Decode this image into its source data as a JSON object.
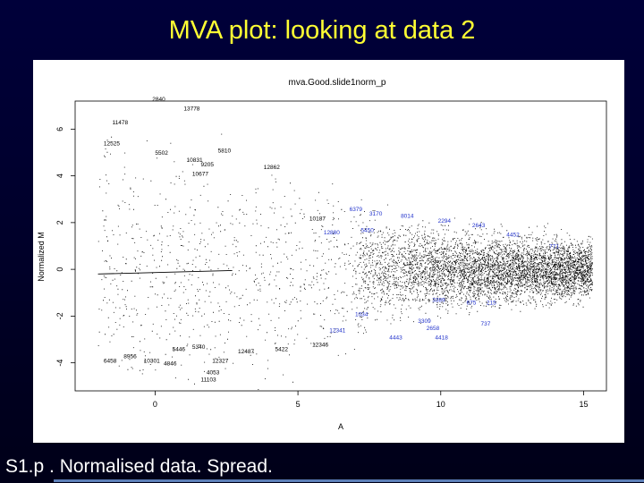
{
  "slide": {
    "title": "MVA plot: looking at data 2",
    "footer": "S1.p . Normalised data. Spread."
  },
  "colors": {
    "background": "#00003a",
    "title": "#ffff33",
    "points": "#000000",
    "highlighted_labels": "#2233cc"
  },
  "chart_data": {
    "type": "scatter",
    "title": "mva.Good.slide1norm_p",
    "xlabel": "A",
    "ylabel": "Normalized M",
    "xlim": [
      -2.8,
      15.8
    ],
    "ylim": [
      -5.2,
      7.2
    ],
    "xticks": [
      "0",
      "5",
      "10",
      "15"
    ],
    "yticks": [
      "-4",
      "-2",
      "0",
      "2",
      "4",
      "6"
    ],
    "xtick_values": [
      0,
      5,
      10,
      15
    ],
    "ytick_values": [
      -4,
      -2,
      0,
      2,
      4,
      6
    ],
    "grid": false,
    "point_density": "dense cloud of points near M = 0, densest for A between 7 and 15, spreading wider at low A",
    "label_color_blue_region": "labels for A above about 5.5 drawn in blue",
    "fit_line": {
      "x": [
        -2.0,
        2.7
      ],
      "y": [
        -0.2,
        -0.05
      ]
    },
    "labeled_points": [
      {
        "label": "2840",
        "x": -0.1,
        "y": 7.2
      },
      {
        "label": "13778",
        "x": 1.0,
        "y": 6.8
      },
      {
        "label": "11478",
        "x": -1.5,
        "y": 6.2
      },
      {
        "label": "12525",
        "x": -1.8,
        "y": 5.3
      },
      {
        "label": "5502",
        "x": 0.0,
        "y": 4.9
      },
      {
        "label": "5810",
        "x": 2.2,
        "y": 5.0
      },
      {
        "label": "10831",
        "x": 1.1,
        "y": 4.6
      },
      {
        "label": "9205",
        "x": 1.6,
        "y": 4.4
      },
      {
        "label": "12862",
        "x": 3.8,
        "y": 4.3
      },
      {
        "label": "10677",
        "x": 1.3,
        "y": 4.0
      },
      {
        "label": "6379",
        "x": 6.8,
        "y": 2.5
      },
      {
        "label": "3170",
        "x": 7.5,
        "y": 2.3
      },
      {
        "label": "10187",
        "x": 5.4,
        "y": 2.1
      },
      {
        "label": "8014",
        "x": 8.6,
        "y": 2.2
      },
      {
        "label": "2294",
        "x": 9.9,
        "y": 2.0
      },
      {
        "label": "2643",
        "x": 11.1,
        "y": 1.8
      },
      {
        "label": "4452",
        "x": 12.3,
        "y": 1.4
      },
      {
        "label": "771",
        "x": 13.8,
        "y": 0.9
      },
      {
        "label": "12880",
        "x": 5.9,
        "y": 1.5
      },
      {
        "label": "5450",
        "x": 7.2,
        "y": 1.6
      },
      {
        "label": "3389",
        "x": 9.7,
        "y": -1.4
      },
      {
        "label": "675",
        "x": 10.9,
        "y": -1.5
      },
      {
        "label": "215",
        "x": 11.6,
        "y": -1.5
      },
      {
        "label": "1034",
        "x": 7.0,
        "y": -2.0
      },
      {
        "label": "3309",
        "x": 9.2,
        "y": -2.3
      },
      {
        "label": "2658",
        "x": 9.5,
        "y": -2.6
      },
      {
        "label": "737",
        "x": 11.4,
        "y": -2.4
      },
      {
        "label": "12341",
        "x": 6.1,
        "y": -2.7
      },
      {
        "label": "4443",
        "x": 8.2,
        "y": -3.0
      },
      {
        "label": "4418",
        "x": 9.8,
        "y": -3.0
      },
      {
        "label": "12346",
        "x": 5.5,
        "y": -3.3
      },
      {
        "label": "5422",
        "x": 4.2,
        "y": -3.5
      },
      {
        "label": "5446",
        "x": 0.6,
        "y": -3.5
      },
      {
        "label": "5340",
        "x": 1.3,
        "y": -3.4
      },
      {
        "label": "12487",
        "x": 2.9,
        "y": -3.6
      },
      {
        "label": "8956",
        "x": -1.1,
        "y": -3.8
      },
      {
        "label": "6458",
        "x": -1.8,
        "y": -4.0
      },
      {
        "label": "10301",
        "x": -0.4,
        "y": -4.0
      },
      {
        "label": "4846",
        "x": 0.3,
        "y": -4.1
      },
      {
        "label": "12327",
        "x": 2.0,
        "y": -4.0
      },
      {
        "label": "4053",
        "x": 1.8,
        "y": -4.5
      },
      {
        "label": "11103",
        "x": 1.6,
        "y": -4.8
      }
    ]
  }
}
